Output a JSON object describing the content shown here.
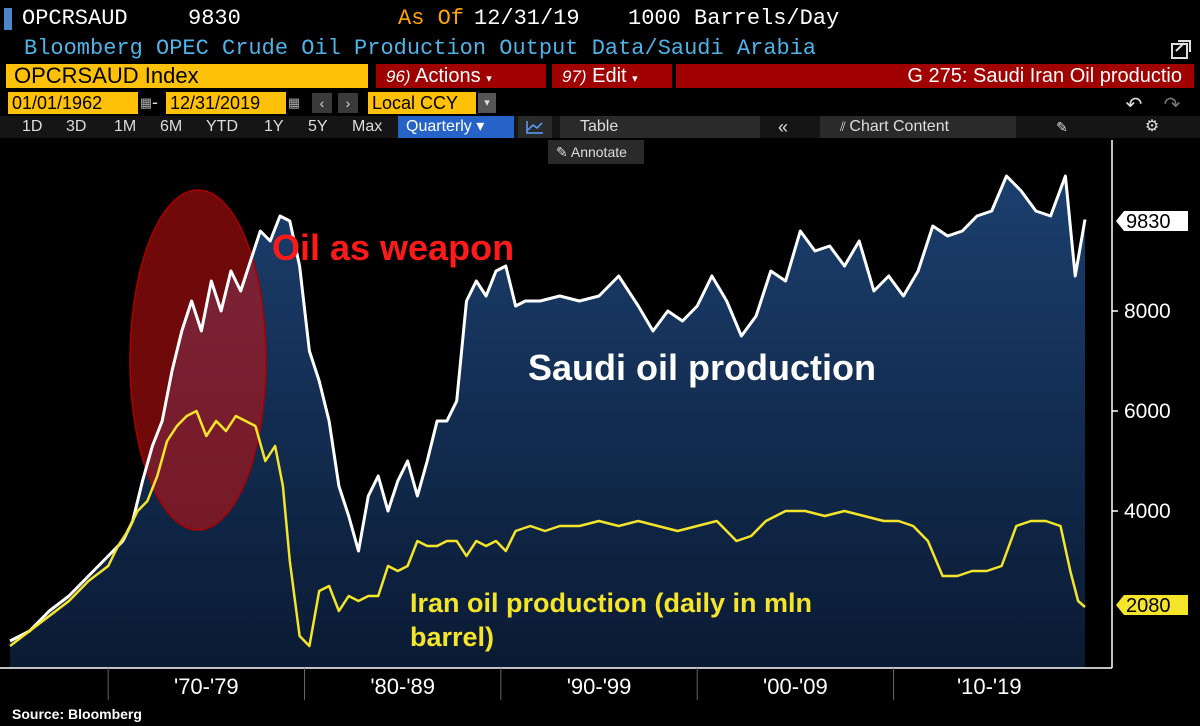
{
  "header": {
    "ticker": "OPCRSAUD",
    "last_value": "9830",
    "asof_label": "As Of",
    "asof_date": "12/31/19",
    "units": "1000 Barrels/Day",
    "subtitle": "Bloomberg OPEC Crude Oil Production Output Data/Saudi Arabia"
  },
  "toolbar": {
    "security": "OPCRSAUD Index",
    "actions_num": "96)",
    "actions_label": "Actions",
    "edit_num": "97)",
    "edit_label": "Edit",
    "graph_title": "G 275: Saudi Iran Oil productio",
    "start_date": "01/01/1962",
    "date_separator": "-",
    "end_date": "12/31/2019",
    "currency": "Local CCY",
    "periods": [
      "1D",
      "3D",
      "1M",
      "6M",
      "YTD",
      "1Y",
      "5Y",
      "Max"
    ],
    "frequency": "Quarterly",
    "table_label": "Table",
    "chart_content_label": "Chart Content",
    "annotate_label": "Annotate"
  },
  "colors": {
    "accent_yellow": "#ffc107",
    "menu_red": "#a00000",
    "saudi_line": "#ffffff",
    "iran_line": "#f5e52a",
    "area_fill": "#0e2a4e",
    "highlight": "#cc1111",
    "annotation_red": "#ff1a1a"
  },
  "source": "Source: Bloomberg",
  "chart_data": {
    "type": "area",
    "x_start": 1965,
    "x_end": 2019.75,
    "ylim": [
      1000,
      11000
    ],
    "yticks": [
      4000,
      6000,
      8000
    ],
    "grid": false,
    "decades": [
      {
        "label": "'70-'79",
        "start": 1970,
        "end": 1980
      },
      {
        "label": "'80-'89",
        "start": 1980,
        "end": 1990
      },
      {
        "label": "'90-'99",
        "start": 1990,
        "end": 2000
      },
      {
        "label": "'00-'09",
        "start": 2000,
        "end": 2010
      },
      {
        "label": "'10-'19",
        "start": 2010,
        "end": 2020
      }
    ],
    "series": [
      {
        "name": "Saudi oil production",
        "x": [
          1965.0,
          1966.0,
          1967.0,
          1968.0,
          1969.0,
          1970.0,
          1970.75,
          1971.25,
          1971.75,
          1972.25,
          1972.75,
          1973.25,
          1973.75,
          1974.25,
          1974.75,
          1975.25,
          1975.75,
          1976.25,
          1976.75,
          1977.25,
          1977.75,
          1978.25,
          1978.75,
          1979.25,
          1979.75,
          1980.25,
          1980.75,
          1981.25,
          1981.75,
          1982.25,
          1982.75,
          1983.25,
          1983.75,
          1984.25,
          1984.75,
          1985.25,
          1985.75,
          1986.25,
          1986.75,
          1987.25,
          1987.75,
          1988.25,
          1988.75,
          1989.25,
          1989.75,
          1990.25,
          1990.75,
          1991.25,
          1992.0,
          1993.0,
          1994.0,
          1995.0,
          1996.0,
          1997.0,
          1997.75,
          1998.5,
          1999.25,
          2000.0,
          2000.75,
          2001.5,
          2002.25,
          2003.0,
          2003.75,
          2004.5,
          2005.25,
          2006.0,
          2006.75,
          2007.5,
          2008.25,
          2009.0,
          2009.75,
          2010.5,
          2011.25,
          2012.0,
          2012.75,
          2013.5,
          2014.25,
          2015.0,
          2015.75,
          2016.5,
          2017.25,
          2018.0,
          2018.75,
          2019.25,
          2019.75
        ],
        "values": [
          1400,
          1600,
          2000,
          2300,
          2700,
          3100,
          3400,
          3800,
          4600,
          5300,
          5800,
          6800,
          7600,
          8200,
          7600,
          8600,
          8000,
          8800,
          8400,
          9000,
          9600,
          9400,
          9900,
          9800,
          8900,
          7200,
          6600,
          5800,
          4500,
          3900,
          3200,
          4300,
          4700,
          4000,
          4600,
          5000,
          4300,
          5000,
          5800,
          5800,
          6200,
          8200,
          8600,
          8300,
          8800,
          8900,
          8100,
          8200,
          8200,
          8300,
          8200,
          8300,
          8700,
          8100,
          7600,
          8000,
          7800,
          8100,
          8700,
          8200,
          7500,
          7900,
          8800,
          8600,
          9600,
          9200,
          9300,
          8900,
          9400,
          8400,
          8700,
          8300,
          8800,
          9700,
          9500,
          9600,
          9900,
          10000,
          10700,
          10400,
          10000,
          9900,
          10700,
          8700,
          9830
        ],
        "last_label": "9830"
      },
      {
        "name": "Iran oil production (daily in mln barrel)",
        "x": [
          1965.0,
          1966.0,
          1967.0,
          1968.0,
          1969.0,
          1970.0,
          1970.5,
          1971.0,
          1971.5,
          1972.0,
          1972.5,
          1973.0,
          1973.5,
          1974.0,
          1974.5,
          1975.0,
          1975.5,
          1976.0,
          1976.5,
          1977.0,
          1977.5,
          1978.0,
          1978.5,
          1978.9,
          1979.25,
          1979.75,
          1980.25,
          1980.75,
          1981.25,
          1981.75,
          1982.25,
          1982.75,
          1983.25,
          1983.75,
          1984.25,
          1984.75,
          1985.25,
          1985.75,
          1986.25,
          1986.75,
          1987.25,
          1987.75,
          1988.25,
          1988.75,
          1989.25,
          1989.75,
          1990.25,
          1990.75,
          1991.5,
          1992.25,
          1993.0,
          1994.0,
          1995.0,
          1996.0,
          1997.0,
          1998.0,
          1999.0,
          2000.0,
          2001.0,
          2002.0,
          2002.75,
          2003.5,
          2004.5,
          2005.5,
          2006.5,
          2007.5,
          2008.5,
          2009.5,
          2010.25,
          2011.0,
          2011.75,
          2012.5,
          2013.25,
          2014.0,
          2014.75,
          2015.5,
          2016.25,
          2017.0,
          2017.75,
          2018.5,
          2019.0,
          2019.4,
          2019.75
        ],
        "values": [
          1300,
          1600,
          1900,
          2200,
          2600,
          2900,
          3300,
          3600,
          4000,
          4200,
          4700,
          5400,
          5700,
          5900,
          6000,
          5500,
          5800,
          5600,
          5900,
          5800,
          5700,
          5000,
          5300,
          4500,
          3000,
          1500,
          1300,
          2400,
          2500,
          2000,
          2300,
          2200,
          2300,
          2300,
          2900,
          2800,
          2900,
          3400,
          3300,
          3300,
          3400,
          3400,
          3100,
          3400,
          3300,
          3400,
          3200,
          3600,
          3700,
          3600,
          3700,
          3700,
          3800,
          3700,
          3800,
          3700,
          3600,
          3700,
          3800,
          3400,
          3500,
          3800,
          4000,
          4000,
          3900,
          4000,
          3900,
          3800,
          3800,
          3700,
          3400,
          2700,
          2700,
          2800,
          2800,
          2900,
          3700,
          3800,
          3800,
          3700,
          2800,
          2200,
          2080
        ],
        "last_label": "2080"
      }
    ],
    "annotations": [
      {
        "text": "Oil as weapon",
        "color": "#ff1a1a"
      },
      {
        "text": "Saudi oil production",
        "color": "#ffffff"
      },
      {
        "text": "Iran oil production (daily in mln",
        "color": "#f5e52a"
      },
      {
        "text": "barrel)",
        "color": "#f5e52a"
      }
    ]
  }
}
